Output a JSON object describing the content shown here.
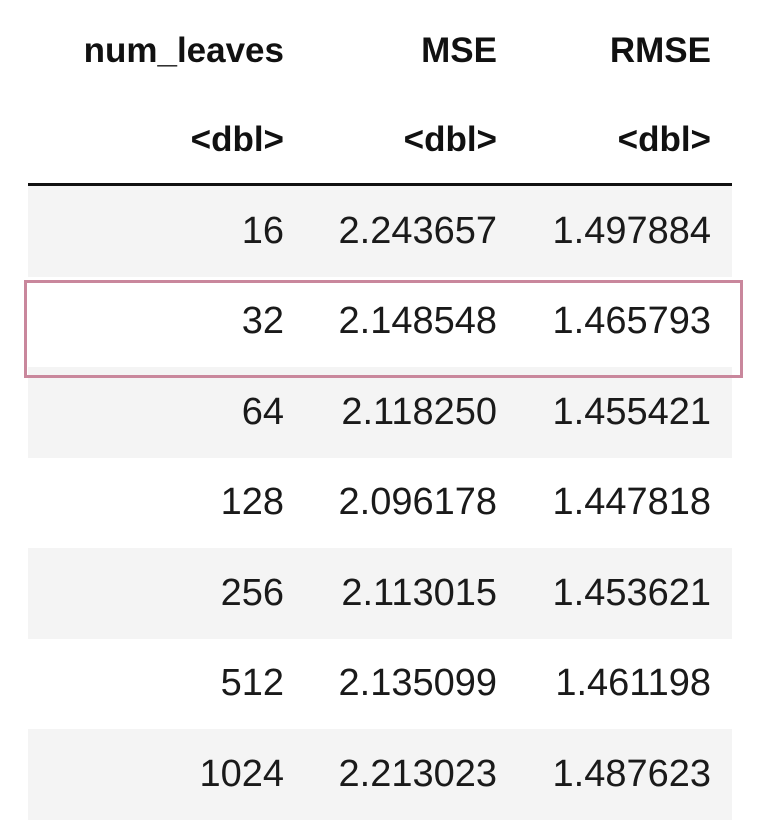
{
  "table": {
    "columns": [
      "num_leaves",
      "MSE",
      "RMSE"
    ],
    "types": [
      "<dbl>",
      "<dbl>",
      "<dbl>"
    ],
    "rows": [
      [
        "16",
        "2.243657",
        "1.497884"
      ],
      [
        "32",
        "2.148548",
        "1.465793"
      ],
      [
        "64",
        "2.118250",
        "1.455421"
      ],
      [
        "128",
        "2.096178",
        "1.447818"
      ],
      [
        "256",
        "2.113015",
        "1.453621"
      ],
      [
        "512",
        "2.135099",
        "1.461198"
      ],
      [
        "1024",
        "2.213023",
        "1.487623"
      ]
    ],
    "highlighted_row_index": 1
  },
  "colors": {
    "stripe": "#f4f4f4",
    "highlight_border": "#c9879c",
    "text": "#111111"
  }
}
